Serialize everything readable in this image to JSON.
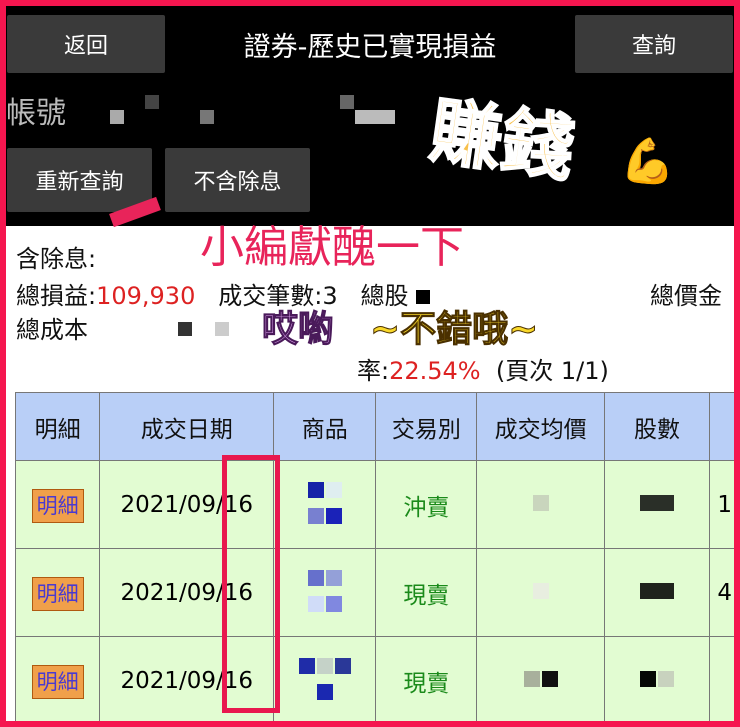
{
  "header": {
    "back_label": "返回",
    "title": "證券-歷史已實現損益",
    "query_label": "查詢"
  },
  "account": {
    "label": "帳號"
  },
  "actions": {
    "requery_label": "重新查詢",
    "exclude_dividend_label": "不含除息"
  },
  "summary": {
    "dividend_label": "含除息:",
    "total_pl_label": "總損益:",
    "total_pl_value": "109,930",
    "trade_count_label": "成交筆數:",
    "trade_count_value": "3",
    "total_shares_label": "總股",
    "total_price_label": "總價金",
    "total_cost_label": "總成本",
    "rate_label": "率:",
    "rate_value": "22.54%",
    "page_info": "(頁次 1/1)"
  },
  "table": {
    "headers": [
      "明細",
      "成交日期",
      "商品",
      "交易別",
      "成交均價",
      "股數"
    ],
    "rows": [
      {
        "detail": "明細",
        "date": "2021/09/16",
        "type": "沖賣",
        "extra": "1"
      },
      {
        "detail": "明細",
        "date": "2021/09/16",
        "type": "現賣",
        "extra": "4"
      },
      {
        "detail": "明細",
        "date": "2021/09/16",
        "type": "現賣",
        "extra": ""
      }
    ]
  },
  "stickers": {
    "caption": "小編獻醜一下",
    "money": "賺錢",
    "money_emoji": "💪",
    "praise_a": "哎喲",
    "praise_b": "~不錯哦~"
  },
  "colors": {
    "accent_red": "#f5164f",
    "header_blue": "#b9cff7",
    "row_green": "#e2fcd2",
    "loss_red": "#dd2222",
    "type_green": "#1a8a1a"
  }
}
